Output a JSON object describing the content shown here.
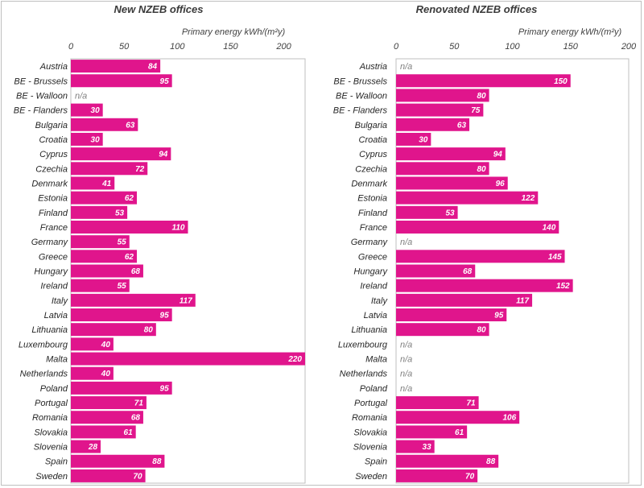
{
  "chart_data": [
    {
      "type": "bar",
      "orientation": "horizontal",
      "title": "New NZEB offices",
      "xlabel": "Primary energy  kWh/(m²y)",
      "xlim": [
        0,
        220
      ],
      "ticks": [
        0,
        50,
        100,
        150,
        200
      ],
      "color": "#E0158C",
      "na_label": "n/a",
      "categories": [
        "Austria",
        "BE - Brussels",
        "BE - Walloon",
        "BE - Flanders",
        "Bulgaria",
        "Croatia",
        "Cyprus",
        "Czechia",
        "Denmark",
        "Estonia",
        "Finland",
        "France",
        "Germany",
        "Greece",
        "Hungary",
        "Ireland",
        "Italy",
        "Latvia",
        "Lithuania",
        "Luxembourg",
        "Malta",
        "Netherlands",
        "Poland",
        "Portugal",
        "Romania",
        "Slovakia",
        "Slovenia",
        "Spain",
        "Sweden"
      ],
      "values": [
        84,
        95,
        null,
        30,
        63,
        30,
        94,
        72,
        41,
        62,
        53,
        110,
        55,
        62,
        68,
        55,
        117,
        95,
        80,
        40,
        220,
        40,
        95,
        71,
        68,
        61,
        28,
        88,
        70
      ]
    },
    {
      "type": "bar",
      "orientation": "horizontal",
      "title": "Renovated NZEB offices",
      "xlabel": "Primary energy  kWh/(m²y)",
      "xlim": [
        0,
        200
      ],
      "ticks": [
        0,
        50,
        100,
        150,
        200
      ],
      "color": "#E0158C",
      "na_label": "n/a",
      "categories": [
        "Austria",
        "BE - Brussels",
        "BE - Walloon",
        "BE - Flanders",
        "Bulgaria",
        "Croatia",
        "Cyprus",
        "Czechia",
        "Denmark",
        "Estonia",
        "Finland",
        "France",
        "Germany",
        "Greece",
        "Hungary",
        "Ireland",
        "Italy",
        "Latvia",
        "Lithuania",
        "Luxembourg",
        "Malta",
        "Netherlands",
        "Poland",
        "Portugal",
        "Romania",
        "Slovakia",
        "Slovenia",
        "Spain",
        "Sweden"
      ],
      "values": [
        null,
        150,
        80,
        75,
        63,
        30,
        94,
        80,
        96,
        122,
        53,
        140,
        null,
        145,
        68,
        152,
        117,
        95,
        80,
        null,
        null,
        null,
        null,
        71,
        106,
        61,
        33,
        88,
        70
      ]
    }
  ]
}
